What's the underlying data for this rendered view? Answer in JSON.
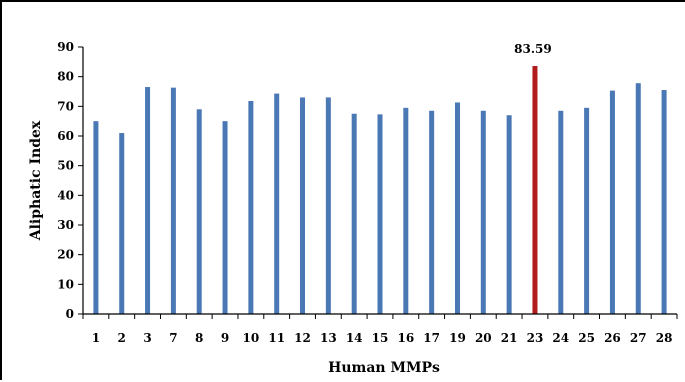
{
  "chart_data": {
    "type": "bar",
    "title": "",
    "xlabel": "Human MMPs",
    "ylabel": "Aliphatic Index",
    "ylim": [
      0,
      90
    ],
    "yticks": [
      0,
      10,
      20,
      30,
      40,
      50,
      60,
      70,
      80,
      90
    ],
    "grid": false,
    "legend": "none",
    "categories": [
      "1",
      "2",
      "3",
      "7",
      "8",
      "9",
      "10",
      "11",
      "12",
      "13",
      "14",
      "15",
      "16",
      "17",
      "19",
      "20",
      "21",
      "23",
      "24",
      "25",
      "26",
      "27",
      "28"
    ],
    "values": [
      65.0,
      61.0,
      76.5,
      76.3,
      69.0,
      65.0,
      71.8,
      74.3,
      73.0,
      73.0,
      67.5,
      67.3,
      69.5,
      68.5,
      71.3,
      68.5,
      67.0,
      83.59,
      68.5,
      69.5,
      75.3,
      77.8,
      75.5
    ],
    "highlight_index": 17,
    "data_labels": [
      {
        "category": "23",
        "text": "83.59"
      }
    ],
    "colors": {
      "bar": "#4a78b5",
      "highlight": "#b01c1c",
      "axis": "#000000"
    }
  }
}
